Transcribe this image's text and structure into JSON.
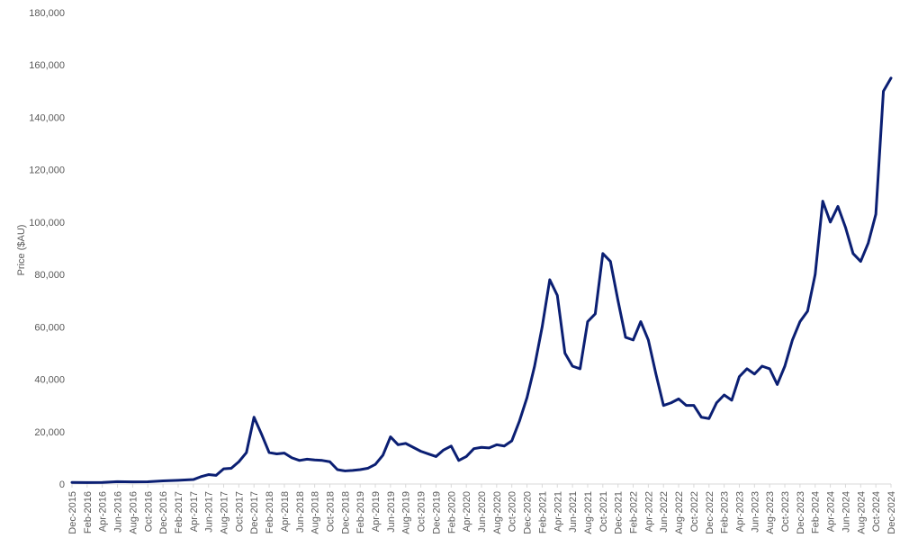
{
  "chart_data": {
    "type": "line",
    "title": "",
    "xlabel": "",
    "ylabel": "Price ($AU)",
    "ylim": [
      0,
      180000
    ],
    "yticks": [
      0,
      20000,
      40000,
      60000,
      80000,
      100000,
      120000,
      140000,
      160000,
      180000
    ],
    "ytick_labels": [
      "0",
      "20,000",
      "40,000",
      "60,000",
      "80,000",
      "100,000",
      "120,000",
      "140,000",
      "160,000",
      "180,000"
    ],
    "xtick_labels": [
      "Dec-2015",
      "Feb-2016",
      "Apr-2016",
      "Jun-2016",
      "Aug-2016",
      "Oct-2016",
      "Dec-2016",
      "Feb-2017",
      "Apr-2017",
      "Jun-2017",
      "Aug-2017",
      "Oct-2017",
      "Dec-2017",
      "Feb-2018",
      "Apr-2018",
      "Jun-2018",
      "Aug-2018",
      "Oct-2018",
      "Dec-2018",
      "Feb-2019",
      "Apr-2019",
      "Jun-2019",
      "Aug-2019",
      "Oct-2019",
      "Dec-2019",
      "Feb-2020",
      "Apr-2020",
      "Jun-2020",
      "Aug-2020",
      "Oct-2020",
      "Dec-2020",
      "Feb-2021",
      "Apr-2021",
      "Jun-2021",
      "Aug-2021",
      "Oct-2021",
      "Dec-2021",
      "Feb-2022",
      "Apr-2022",
      "Jun-2022",
      "Aug-2022",
      "Oct-2022",
      "Dec-2022",
      "Feb-2023",
      "Apr-2023",
      "Jun-2023",
      "Aug-2023",
      "Oct-2023",
      "Dec-2023",
      "Feb-2024",
      "Apr-2024",
      "Jun-2024",
      "Aug-2024",
      "Oct-2024",
      "Dec-2024"
    ],
    "grid": false,
    "legend": "none",
    "series": [
      {
        "color": "#0b1f73",
        "x": [
          "Dec-2015",
          "Feb-2016",
          "Apr-2016",
          "Jun-2016",
          "Aug-2016",
          "Oct-2016",
          "Dec-2016",
          "Feb-2017",
          "Apr-2017",
          "May-2017",
          "Jun-2017",
          "Jul-2017",
          "Aug-2017",
          "Sep-2017",
          "Oct-2017",
          "Nov-2017",
          "Dec-2017",
          "Jan-2018",
          "Feb-2018",
          "Mar-2018",
          "Apr-2018",
          "May-2018",
          "Jun-2018",
          "Jul-2018",
          "Aug-2018",
          "Sep-2018",
          "Oct-2018",
          "Nov-2018",
          "Dec-2018",
          "Jan-2019",
          "Feb-2019",
          "Mar-2019",
          "Apr-2019",
          "May-2019",
          "Jun-2019",
          "Jul-2019",
          "Aug-2019",
          "Sep-2019",
          "Oct-2019",
          "Nov-2019",
          "Dec-2019",
          "Jan-2020",
          "Feb-2020",
          "Mar-2020",
          "Apr-2020",
          "May-2020",
          "Jun-2020",
          "Jul-2020",
          "Aug-2020",
          "Sep-2020",
          "Oct-2020",
          "Nov-2020",
          "Dec-2020",
          "Jan-2021",
          "Feb-2021",
          "Mar-2021",
          "Apr-2021",
          "May-2021",
          "Jun-2021",
          "Jul-2021",
          "Aug-2021",
          "Sep-2021",
          "Oct-2021",
          "Nov-2021",
          "Dec-2021",
          "Jan-2022",
          "Feb-2022",
          "Mar-2022",
          "Apr-2022",
          "May-2022",
          "Jun-2022",
          "Jul-2022",
          "Aug-2022",
          "Sep-2022",
          "Oct-2022",
          "Nov-2022",
          "Dec-2022",
          "Jan-2023",
          "Feb-2023",
          "Mar-2023",
          "Apr-2023",
          "May-2023",
          "Jun-2023",
          "Jul-2023",
          "Aug-2023",
          "Sep-2023",
          "Oct-2023",
          "Nov-2023",
          "Dec-2023",
          "Jan-2024",
          "Feb-2024",
          "Mar-2024",
          "Apr-2024",
          "May-2024",
          "Jun-2024",
          "Jul-2024",
          "Aug-2024",
          "Sep-2024",
          "Oct-2024",
          "Nov-2024",
          "Dec-2024"
        ],
        "values": [
          600,
          550,
          600,
          900,
          800,
          850,
          1200,
          1400,
          1700,
          2800,
          3600,
          3300,
          5800,
          6000,
          8500,
          12000,
          25500,
          19000,
          12000,
          11500,
          11800,
          10000,
          9000,
          9500,
          9200,
          9000,
          8500,
          5500,
          5000,
          5200,
          5500,
          6000,
          7500,
          11000,
          18000,
          15000,
          15500,
          14000,
          12500,
          11500,
          10500,
          13000,
          14500,
          9000,
          10500,
          13500,
          14000,
          13800,
          15000,
          14500,
          16500,
          24000,
          33000,
          45000,
          60000,
          78000,
          72000,
          50000,
          45000,
          44000,
          62000,
          65000,
          88000,
          85000,
          70000,
          56000,
          55000,
          62000,
          55000,
          42000,
          30000,
          31000,
          32500,
          30000,
          30000,
          25500,
          25000,
          31000,
          34000,
          32000,
          41000,
          44000,
          42000,
          45000,
          44000,
          38000,
          45000,
          55000,
          62000,
          66000,
          80000,
          108000,
          100000,
          106000,
          98000,
          88000,
          85000,
          92000,
          103000,
          150000,
          155000
        ]
      }
    ]
  }
}
